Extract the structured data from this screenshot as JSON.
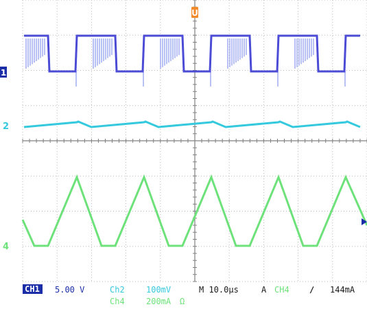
{
  "colors": {
    "background": "#ffffff",
    "grid": "#b8b8b8",
    "graticule_frame": "#808080",
    "ch1": "#4b4bd6",
    "ch1_fill": "#9aa6f0",
    "ch2": "#35c9de",
    "ch4": "#6ee27a",
    "trigger": "#f08a2a",
    "readout_box": "#1b2ea8"
  },
  "markers": {
    "ch1": "1",
    "ch2": "2",
    "ch4": "4",
    "trigger": "U"
  },
  "readout": {
    "ch1_label": "CH1",
    "ch1_scale": "5.00 V",
    "ch2_label": "Ch2",
    "ch2_scale": "100mV",
    "timebase": "M 10.0µs",
    "trigger_mode": "A",
    "trigger_source": "CH4",
    "trigger_slope": "∕",
    "trigger_level": "144mA",
    "ch4_label": "Ch4",
    "ch4_scale": "200mA",
    "ch4_coupling": "Ω"
  }
}
